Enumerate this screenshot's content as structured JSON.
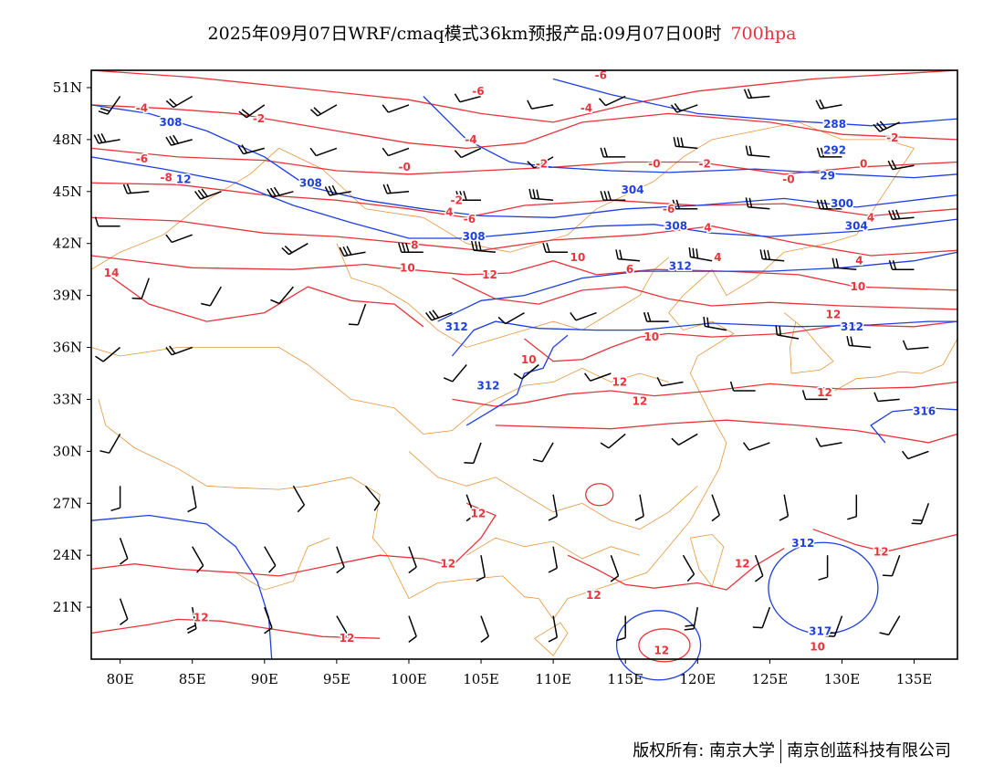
{
  "title": {
    "main": "2025年09月07日WRF/cmaq模式36km预报产品:09月07日00时",
    "level": "700hpa"
  },
  "map": {
    "lon_range": [
      78,
      138
    ],
    "lat_range": [
      18,
      52
    ],
    "x_ticks": [
      "80E",
      "85E",
      "90E",
      "95E",
      "100E",
      "105E",
      "110E",
      "115E",
      "120E",
      "125E",
      "130E",
      "135E"
    ],
    "x_tick_values": [
      80,
      85,
      90,
      95,
      100,
      105,
      110,
      115,
      120,
      125,
      130,
      135
    ],
    "y_ticks": [
      "51N",
      "48N",
      "45N",
      "42N",
      "39N",
      "36N",
      "33N",
      "30N",
      "27N",
      "24N",
      "21N"
    ],
    "y_tick_values": [
      51,
      48,
      45,
      42,
      39,
      36,
      33,
      30,
      27,
      24,
      21
    ],
    "colors": {
      "geopotential": "#1f3fe0",
      "temperature": "#e8343a",
      "boundary": "#e3963e",
      "wind": "#000000"
    },
    "geopotential_labels": [
      {
        "text": "308",
        "lon": 83.5,
        "lat": 49.0
      },
      {
        "text": "308",
        "lon": 93.2,
        "lat": 45.5
      },
      {
        "text": "308",
        "lon": 104.5,
        "lat": 42.4
      },
      {
        "text": "304",
        "lon": 115.5,
        "lat": 45.1
      },
      {
        "text": "308",
        "lon": 118.5,
        "lat": 43.0
      },
      {
        "text": "312",
        "lon": 118.8,
        "lat": 40.7
      },
      {
        "text": "288",
        "lon": 129.5,
        "lat": 48.9
      },
      {
        "text": "292",
        "lon": 129.5,
        "lat": 47.4
      },
      {
        "text": "29",
        "lon": 129.0,
        "lat": 45.9
      },
      {
        "text": "300",
        "lon": 130.0,
        "lat": 44.3
      },
      {
        "text": "304",
        "lon": 131.0,
        "lat": 43.0
      },
      {
        "text": "312",
        "lon": 103.3,
        "lat": 37.2
      },
      {
        "text": "312",
        "lon": 105.5,
        "lat": 33.8
      },
      {
        "text": "312",
        "lon": 130.7,
        "lat": 37.2
      },
      {
        "text": "316",
        "lon": 135.7,
        "lat": 32.3
      },
      {
        "text": "312",
        "lon": 127.3,
        "lat": 24.7
      },
      {
        "text": "317",
        "lon": 128.5,
        "lat": 19.6
      },
      {
        "text": "12",
        "lon": 84.4,
        "lat": 45.7
      }
    ],
    "temperature_labels": [
      {
        "text": "-6",
        "lon": 104.8,
        "lat": 50.8
      },
      {
        "text": "-6",
        "lon": 113.3,
        "lat": 51.7
      },
      {
        "text": "-4",
        "lon": 81.5,
        "lat": 49.8
      },
      {
        "text": "-2",
        "lon": 89.6,
        "lat": 49.2
      },
      {
        "text": "-4",
        "lon": 112.3,
        "lat": 49.8
      },
      {
        "text": "-4",
        "lon": 104.3,
        "lat": 48.0
      },
      {
        "text": "-6",
        "lon": 81.5,
        "lat": 46.9
      },
      {
        "text": "-0",
        "lon": 99.7,
        "lat": 46.4
      },
      {
        "text": "-2",
        "lon": 109.2,
        "lat": 46.6
      },
      {
        "text": "-0",
        "lon": 117.0,
        "lat": 46.6
      },
      {
        "text": "-2",
        "lon": 120.5,
        "lat": 46.6
      },
      {
        "text": "-8",
        "lon": 83.2,
        "lat": 45.8
      },
      {
        "text": "-2",
        "lon": 133.5,
        "lat": 48.1
      },
      {
        "text": "0",
        "lon": 131.5,
        "lat": 46.6
      },
      {
        "text": "-0",
        "lon": 126.3,
        "lat": 45.7
      },
      {
        "text": "-2",
        "lon": 103.3,
        "lat": 44.5
      },
      {
        "text": "-6",
        "lon": 104.2,
        "lat": 43.4
      },
      {
        "text": "4",
        "lon": 102.8,
        "lat": 43.8
      },
      {
        "text": "-6",
        "lon": 118.0,
        "lat": 44.0
      },
      {
        "text": "4",
        "lon": 120.7,
        "lat": 42.9
      },
      {
        "text": "4",
        "lon": 132.0,
        "lat": 43.5
      },
      {
        "text": "8",
        "lon": 100.4,
        "lat": 41.9
      },
      {
        "text": "6",
        "lon": 115.3,
        "lat": 40.5
      },
      {
        "text": "4",
        "lon": 121.4,
        "lat": 41.2
      },
      {
        "text": "10",
        "lon": 99.9,
        "lat": 40.6
      },
      {
        "text": "12",
        "lon": 105.6,
        "lat": 40.2
      },
      {
        "text": "10",
        "lon": 111.7,
        "lat": 41.2
      },
      {
        "text": "14",
        "lon": 79.4,
        "lat": 40.3
      },
      {
        "text": "4",
        "lon": 131.2,
        "lat": 41.0
      },
      {
        "text": "10",
        "lon": 131.1,
        "lat": 39.5
      },
      {
        "text": "10",
        "lon": 116.8,
        "lat": 36.6
      },
      {
        "text": "12",
        "lon": 129.4,
        "lat": 37.9
      },
      {
        "text": "10",
        "lon": 108.3,
        "lat": 35.3
      },
      {
        "text": "12",
        "lon": 114.6,
        "lat": 34.0
      },
      {
        "text": "12",
        "lon": 116.0,
        "lat": 32.9
      },
      {
        "text": "12",
        "lon": 128.8,
        "lat": 33.4
      },
      {
        "text": "12",
        "lon": 104.8,
        "lat": 26.4
      },
      {
        "text": "12",
        "lon": 102.7,
        "lat": 23.5
      },
      {
        "text": "12",
        "lon": 112.8,
        "lat": 21.7
      },
      {
        "text": "12",
        "lon": 123.1,
        "lat": 23.5
      },
      {
        "text": "12",
        "lon": 132.7,
        "lat": 24.2
      },
      {
        "text": "12",
        "lon": 85.6,
        "lat": 20.4
      },
      {
        "text": "12",
        "lon": 95.7,
        "lat": 19.2
      },
      {
        "text": "12",
        "lon": 117.5,
        "lat": 18.5
      },
      {
        "text": "10",
        "lon": 128.3,
        "lat": 18.7
      }
    ],
    "wind_barbs": [
      [
        80,
        50.5,
        215,
        2
      ],
      [
        85,
        50.5,
        240,
        2
      ],
      [
        90,
        50,
        235,
        2
      ],
      [
        95,
        50,
        240,
        2
      ],
      [
        100,
        50,
        250,
        1
      ],
      [
        105,
        50.5,
        255,
        1
      ],
      [
        110,
        50,
        260,
        1
      ],
      [
        115,
        50.5,
        245,
        1
      ],
      [
        120,
        50,
        250,
        2
      ],
      [
        125,
        50.5,
        265,
        2
      ],
      [
        130,
        50,
        260,
        2
      ],
      [
        134,
        49,
        245,
        3
      ],
      [
        80,
        48,
        260,
        3
      ],
      [
        85,
        48,
        255,
        3
      ],
      [
        90,
        47.5,
        255,
        2
      ],
      [
        95,
        47.5,
        250,
        1
      ],
      [
        100,
        47.5,
        250,
        1
      ],
      [
        105,
        47.5,
        245,
        1
      ],
      [
        110,
        47,
        240,
        1
      ],
      [
        115,
        47,
        270,
        2
      ],
      [
        120,
        47.5,
        275,
        3
      ],
      [
        125,
        47,
        275,
        2
      ],
      [
        130,
        47,
        270,
        2
      ],
      [
        135,
        46.5,
        260,
        2
      ],
      [
        82,
        45,
        265,
        2
      ],
      [
        87,
        45,
        250,
        3
      ],
      [
        92,
        45,
        255,
        3
      ],
      [
        96,
        45,
        260,
        3
      ],
      [
        100,
        45,
        265,
        2
      ],
      [
        105,
        44.5,
        270,
        3
      ],
      [
        110,
        44.5,
        275,
        3
      ],
      [
        115,
        44.5,
        270,
        3
      ],
      [
        120,
        44,
        270,
        2
      ],
      [
        125,
        44,
        275,
        2
      ],
      [
        130,
        44,
        270,
        3
      ],
      [
        135,
        43.5,
        265,
        3
      ],
      [
        80,
        43,
        270,
        1
      ],
      [
        85,
        42.5,
        250,
        1
      ],
      [
        93,
        42,
        240,
        2
      ],
      [
        97,
        41.5,
        260,
        3
      ],
      [
        101,
        41.5,
        270,
        3
      ],
      [
        106,
        41.5,
        275,
        3
      ],
      [
        111,
        41.5,
        270,
        2
      ],
      [
        116,
        41,
        275,
        2
      ],
      [
        121,
        41,
        280,
        3
      ],
      [
        126,
        41,
        275,
        3
      ],
      [
        131,
        40.5,
        275,
        2
      ],
      [
        135,
        40.5,
        270,
        2
      ],
      [
        82,
        40,
        200,
        1
      ],
      [
        87,
        39.5,
        210,
        1
      ],
      [
        92,
        39.5,
        220,
        1
      ],
      [
        97,
        38.5,
        200,
        1
      ],
      [
        103,
        38,
        250,
        3
      ],
      [
        108,
        38,
        240,
        1
      ],
      [
        113,
        38,
        250,
        1
      ],
      [
        118,
        37.5,
        270,
        2
      ],
      [
        122,
        37,
        280,
        2
      ],
      [
        127,
        36.5,
        280,
        2
      ],
      [
        132,
        36,
        275,
        2
      ],
      [
        136,
        36,
        265,
        1
      ],
      [
        80,
        36,
        230,
        1
      ],
      [
        85,
        36,
        250,
        2
      ],
      [
        104,
        35,
        220,
        1
      ],
      [
        109,
        35,
        230,
        1
      ],
      [
        114,
        34.5,
        250,
        1
      ],
      [
        119,
        34,
        260,
        1
      ],
      [
        124,
        33.5,
        270,
        1
      ],
      [
        129,
        33,
        270,
        1
      ],
      [
        134,
        33,
        265,
        1
      ],
      [
        80,
        31,
        210,
        1
      ],
      [
        105,
        30.5,
        200,
        1
      ],
      [
        110,
        30.5,
        210,
        1
      ],
      [
        115,
        31,
        230,
        1
      ],
      [
        120,
        31,
        240,
        1
      ],
      [
        125,
        30.5,
        250,
        1
      ],
      [
        130,
        30.5,
        260,
        1
      ],
      [
        136,
        30,
        250,
        1
      ],
      [
        80,
        28,
        180,
        1
      ],
      [
        85,
        28,
        170,
        1
      ],
      [
        92,
        28,
        150,
        1
      ],
      [
        97,
        28,
        140,
        1
      ],
      [
        104,
        27.5,
        160,
        1
      ],
      [
        110,
        27.5,
        170,
        1
      ],
      [
        116,
        27.5,
        170,
        1
      ],
      [
        121,
        27.5,
        160,
        1
      ],
      [
        126,
        27.5,
        170,
        1
      ],
      [
        131,
        27.5,
        180,
        1
      ],
      [
        136,
        27,
        200,
        2
      ],
      [
        80,
        25,
        160,
        1
      ],
      [
        85,
        24.5,
        150,
        1
      ],
      [
        90,
        24.5,
        150,
        1
      ],
      [
        95,
        24.5,
        160,
        1
      ],
      [
        100,
        24.5,
        160,
        1
      ],
      [
        105,
        24,
        170,
        1
      ],
      [
        110,
        24.5,
        170,
        1
      ],
      [
        114,
        24,
        160,
        1
      ],
      [
        119,
        24,
        150,
        1
      ],
      [
        124,
        24,
        160,
        1
      ],
      [
        129,
        24,
        180,
        1
      ],
      [
        134,
        24,
        200,
        1
      ],
      [
        80,
        21.5,
        160,
        1
      ],
      [
        85,
        21,
        170,
        2
      ],
      [
        90,
        21,
        160,
        1
      ],
      [
        95,
        20.5,
        150,
        1
      ],
      [
        100,
        20.5,
        160,
        1
      ],
      [
        105,
        20.5,
        160,
        1
      ],
      [
        110,
        20.5,
        170,
        1
      ],
      [
        115,
        20.5,
        180,
        1
      ],
      [
        120,
        21,
        190,
        2
      ],
      [
        125,
        21,
        200,
        1
      ],
      [
        130,
        20.5,
        200,
        2
      ],
      [
        134,
        20.5,
        210,
        1
      ]
    ]
  },
  "footer": {
    "left": "版权所有: 南京大学",
    "right": "南京创蓝科技有限公司"
  }
}
